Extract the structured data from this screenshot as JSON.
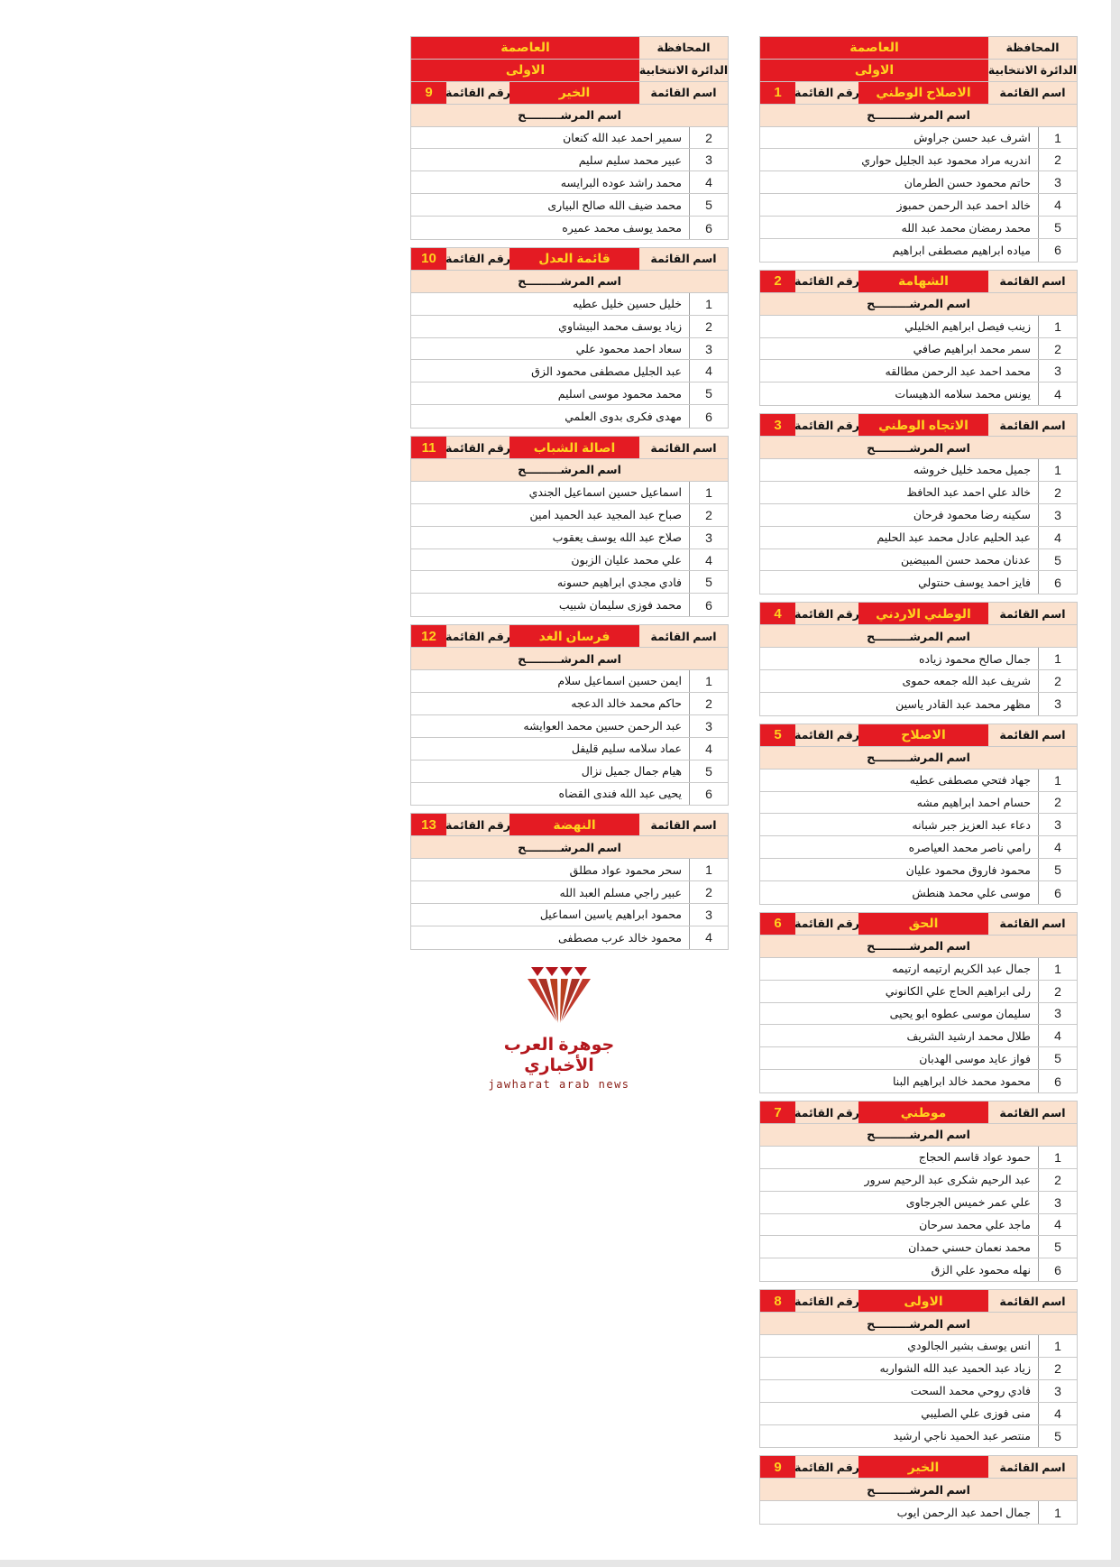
{
  "header": {
    "governorate_label": "المحافظة",
    "governorate": "العاصمة",
    "district_label": "الدائرة الانتخابية",
    "district": "الاولى",
    "list_name_label": "اسم القائمة",
    "list_number_label": "رقم القائمة",
    "candidate_header": "اسم المرشـــــــــح"
  },
  "colors": {
    "red": "#e41b23",
    "yellow": "#ffd21f",
    "beige": "#fbe2cf"
  },
  "columns": [
    {
      "lists": [
        {
          "number": "1",
          "name": "الاصلاح الوطني",
          "candidates": [
            {
              "n": "1",
              "name": "اشرف عبد حسن جراوش"
            },
            {
              "n": "2",
              "name": "اندريه مراد محمود عبد الجليل حواري"
            },
            {
              "n": "3",
              "name": "حاتم محمود حسن الطرمان"
            },
            {
              "n": "4",
              "name": "خالد احمد عبد الرحمن حمبوز"
            },
            {
              "n": "5",
              "name": "محمد رمضان محمد عبد الله"
            },
            {
              "n": "6",
              "name": "مياده ابراهيم مصطفى ابراهيم"
            }
          ]
        },
        {
          "number": "2",
          "name": "الشهامة",
          "candidates": [
            {
              "n": "1",
              "name": "زينب فيصل ابراهيم الخليلي"
            },
            {
              "n": "2",
              "name": "سمر محمد ابراهيم صافي"
            },
            {
              "n": "3",
              "name": "محمد احمد عبد الرحمن مطالقه"
            },
            {
              "n": "4",
              "name": "يونس محمد سلامه الدهيسات"
            }
          ]
        },
        {
          "number": "3",
          "name": "الاتجاه الوطني",
          "candidates": [
            {
              "n": "1",
              "name": "جميل محمد خليل خروشه"
            },
            {
              "n": "2",
              "name": "خالد علي احمد عبد الحافظ"
            },
            {
              "n": "3",
              "name": "سكينه رضا محمود فرحان"
            },
            {
              "n": "4",
              "name": "عبد الحليم عادل محمد عبد الحليم"
            },
            {
              "n": "5",
              "name": "عدنان محمد حسن المبيضين"
            },
            {
              "n": "6",
              "name": "فايز احمد يوسف حنتولي"
            }
          ]
        },
        {
          "number": "4",
          "name": "الوطني الاردني",
          "candidates": [
            {
              "n": "1",
              "name": "جمال صالح محمود زياده"
            },
            {
              "n": "2",
              "name": "شريف عبد الله جمعه حموى"
            },
            {
              "n": "3",
              "name": "مظهر محمد عبد القادر ياسين"
            }
          ]
        },
        {
          "number": "5",
          "name": "الاصلاح",
          "candidates": [
            {
              "n": "1",
              "name": "جهاد فتحي مصطفى عطيه"
            },
            {
              "n": "2",
              "name": "حسام احمد ابراهيم مشه"
            },
            {
              "n": "3",
              "name": "دعاء عبد العزيز جبر شبانه"
            },
            {
              "n": "4",
              "name": "رامي ناصر محمد العياصره"
            },
            {
              "n": "5",
              "name": "محمود فاروق محمود عليان"
            },
            {
              "n": "6",
              "name": "موسى علي محمد هنطش"
            }
          ]
        },
        {
          "number": "6",
          "name": "الحق",
          "candidates": [
            {
              "n": "1",
              "name": "جمال عبد الكريم ارتيمه ارتيمه"
            },
            {
              "n": "2",
              "name": "رلى ابراهيم الحاج علي الكانوني"
            },
            {
              "n": "3",
              "name": "سليمان موسى عطوه ابو يحيى"
            },
            {
              "n": "4",
              "name": "طلال محمد ارشيد الشريف"
            },
            {
              "n": "5",
              "name": "فواز عايد موسى الهدبان"
            },
            {
              "n": "6",
              "name": "محمود محمد خالد ابراهيم البنا"
            }
          ]
        },
        {
          "number": "7",
          "name": "موطني",
          "candidates": [
            {
              "n": "1",
              "name": "حمود عواد قاسم الحجاج"
            },
            {
              "n": "2",
              "name": "عبد الرحيم شكرى عبد الرحيم سرور"
            },
            {
              "n": "3",
              "name": "علي عمر خميس الجرجاوى"
            },
            {
              "n": "4",
              "name": "ماجد علي محمد سرحان"
            },
            {
              "n": "5",
              "name": "محمد نعمان حسني حمدان"
            },
            {
              "n": "6",
              "name": "نهله محمود علي الزق"
            }
          ]
        },
        {
          "number": "8",
          "name": "الاولى",
          "candidates": [
            {
              "n": "1",
              "name": "انس يوسف بشير الجالودي"
            },
            {
              "n": "2",
              "name": "زياد عبد الحميد عبد الله الشواربه"
            },
            {
              "n": "3",
              "name": "فادي روحي محمد السحت"
            },
            {
              "n": "4",
              "name": "منى فوزى علي الصليبي"
            },
            {
              "n": "5",
              "name": "منتصر عبد الحميد ناجي ارشيد"
            }
          ]
        },
        {
          "number": "9",
          "name": "الخير",
          "candidates": [
            {
              "n": "1",
              "name": "جمال احمد عبد الرحمن ايوب"
            }
          ]
        }
      ]
    },
    {
      "lists": [
        {
          "number": "9",
          "name": "الخير",
          "candidates": [
            {
              "n": "2",
              "name": "سمير احمد عبد الله كنعان"
            },
            {
              "n": "3",
              "name": "عبير محمد سليم سليم"
            },
            {
              "n": "4",
              "name": "محمد راشد عوده البرايسه"
            },
            {
              "n": "5",
              "name": "محمد ضيف الله صالح البيارى"
            },
            {
              "n": "6",
              "name": "محمد يوسف محمد عميره"
            }
          ]
        },
        {
          "number": "10",
          "name": "قائمة العدل",
          "candidates": [
            {
              "n": "1",
              "name": "خليل حسين خليل عطيه"
            },
            {
              "n": "2",
              "name": "زياد يوسف محمد البيشاوي"
            },
            {
              "n": "3",
              "name": "سعاد احمد محمود علي"
            },
            {
              "n": "4",
              "name": "عبد الجليل مصطفى محمود الزق"
            },
            {
              "n": "5",
              "name": "محمد محمود موسى اسليم"
            },
            {
              "n": "6",
              "name": "مهدى فكرى بدوى العلمي"
            }
          ]
        },
        {
          "number": "11",
          "name": "اصالة الشباب",
          "candidates": [
            {
              "n": "1",
              "name": "اسماعيل حسين اسماعيل الجندي"
            },
            {
              "n": "2",
              "name": "صباح عبد المجيد عبد الحميد امين"
            },
            {
              "n": "3",
              "name": "صلاح عبد الله يوسف يعقوب"
            },
            {
              "n": "4",
              "name": "علي محمد عليان الزبون"
            },
            {
              "n": "5",
              "name": "فادي مجدي ابراهيم حسونه"
            },
            {
              "n": "6",
              "name": "محمد فوزى سليمان شبيب"
            }
          ]
        },
        {
          "number": "12",
          "name": "فرسان الغد",
          "candidates": [
            {
              "n": "1",
              "name": "ايمن حسين اسماعيل سلام"
            },
            {
              "n": "2",
              "name": "حاكم محمد خالد الدعجه"
            },
            {
              "n": "3",
              "name": "عبد الرحمن حسين محمد العوايشه"
            },
            {
              "n": "4",
              "name": "عماد سلامه سليم قليفل"
            },
            {
              "n": "5",
              "name": "هيام جمال جميل نزال"
            },
            {
              "n": "6",
              "name": "يحيى عبد الله فندى القضاه"
            }
          ]
        },
        {
          "number": "13",
          "name": "النهضة",
          "candidates": [
            {
              "n": "1",
              "name": "سحر محمود عواد مطلق"
            },
            {
              "n": "2",
              "name": "عبير راجي مسلم العبد الله"
            },
            {
              "n": "3",
              "name": "محمود ابراهيم ياسين اسماعيل"
            },
            {
              "n": "4",
              "name": "محمود خالد عرب مصطفى"
            }
          ]
        }
      ]
    }
  ],
  "logo": {
    "arabic": "جوهرة العرب الأخباري",
    "english": "jawharat arab news"
  }
}
